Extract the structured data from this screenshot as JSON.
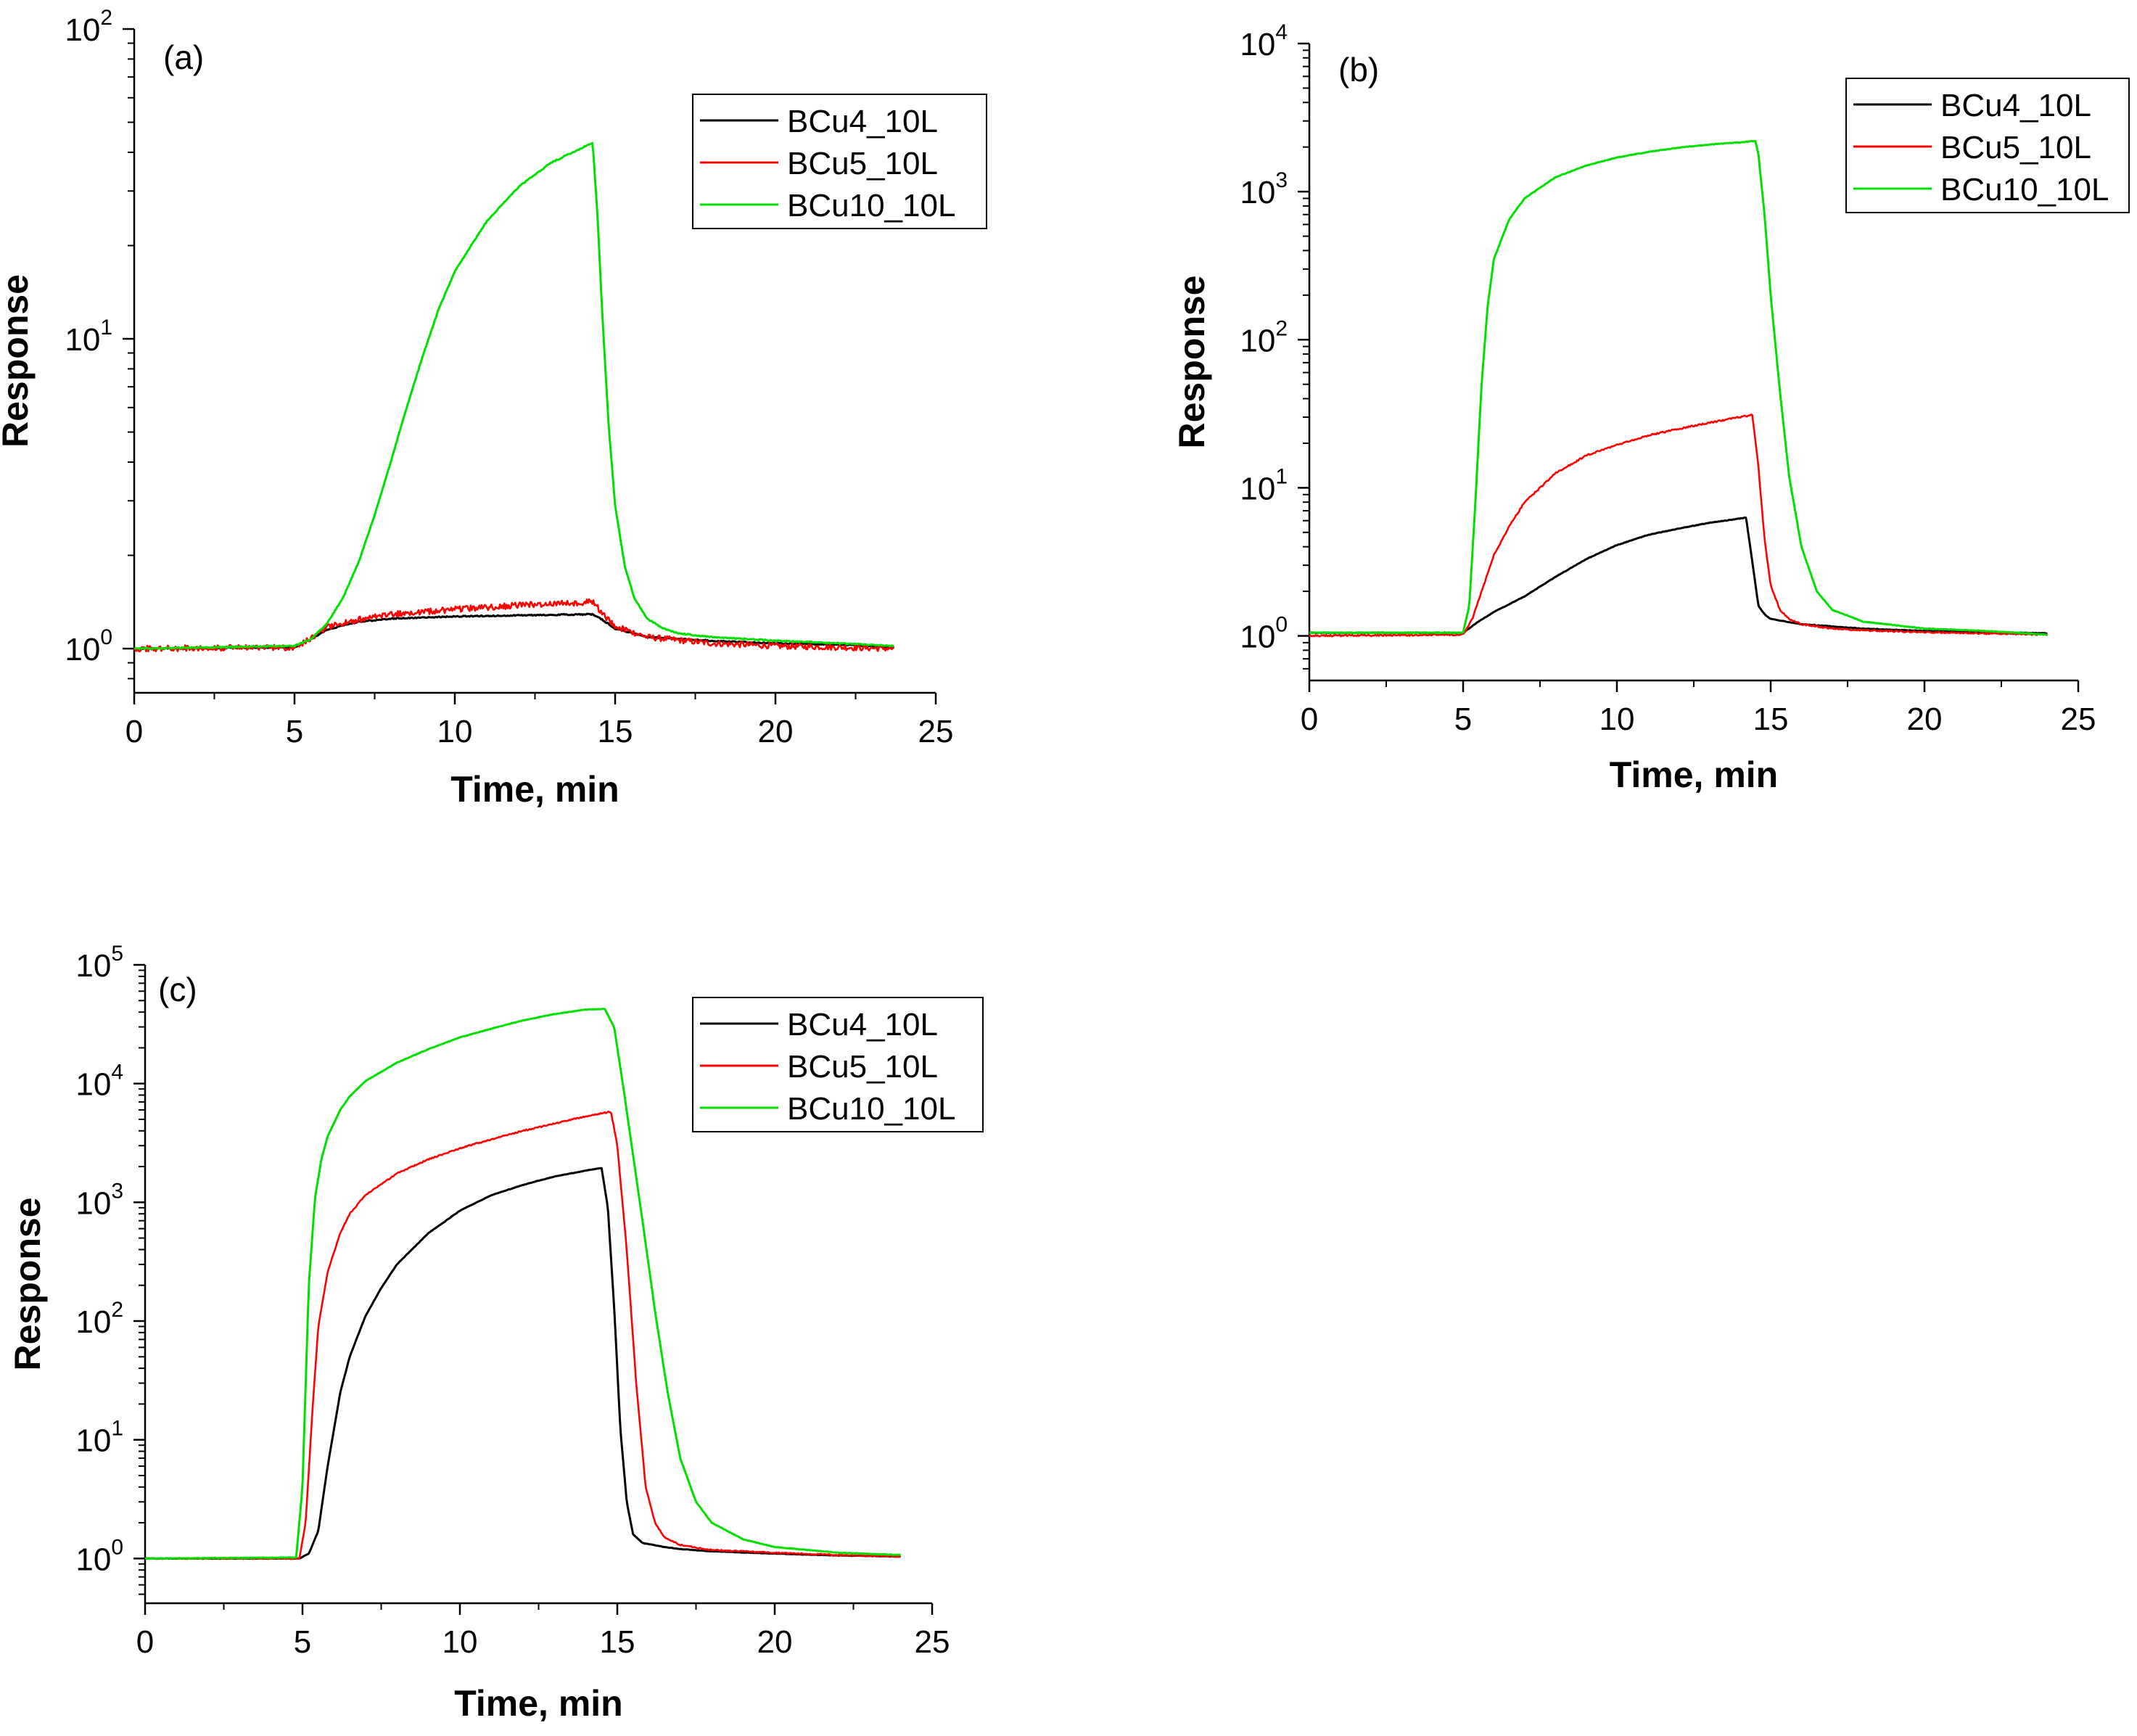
{
  "chart_data": [
    {
      "panel": "(a)",
      "type": "line",
      "xlabel": "Time, min",
      "ylabel": "Response",
      "xlim": [
        0,
        25
      ],
      "ylim": [
        0.72,
        100
      ],
      "yscale": "log",
      "x_ticks": [
        "0",
        "5",
        "10",
        "15",
        "20",
        "25"
      ],
      "y_ticks": [
        {
          "base": "10",
          "exp": "0",
          "value": 1
        },
        {
          "base": "10",
          "exp": "1",
          "value": 10
        },
        {
          "base": "10",
          "exp": "2",
          "value": 100
        }
      ],
      "legend": "top-right",
      "series": [
        {
          "name": "BCu4_10L",
          "color": "#000000",
          "noise": 0.004,
          "x": [
            0,
            5,
            5.5,
            6,
            7,
            8,
            10,
            12,
            14,
            14.3,
            14.6,
            15,
            16,
            18,
            20,
            22,
            23.7
          ],
          "y": [
            1.0,
            1.01,
            1.07,
            1.15,
            1.22,
            1.25,
            1.27,
            1.28,
            1.29,
            1.29,
            1.24,
            1.16,
            1.09,
            1.06,
            1.04,
            1.03,
            1.01
          ]
        },
        {
          "name": "BCu5_10L",
          "color": "#ff0000",
          "noise": 0.022,
          "x": [
            0,
            5,
            5.5,
            6,
            7,
            8,
            10,
            12,
            14,
            14.3,
            14.6,
            15,
            16,
            18,
            20,
            22,
            23.7
          ],
          "y": [
            1.0,
            1.01,
            1.08,
            1.17,
            1.24,
            1.29,
            1.34,
            1.38,
            1.41,
            1.42,
            1.3,
            1.18,
            1.09,
            1.04,
            1.02,
            1.01,
            1.0
          ]
        },
        {
          "name": "BCu10_10L",
          "color": "#00e000",
          "noise": 0.004,
          "x": [
            0,
            5,
            5.5,
            6,
            6.5,
            7,
            7.5,
            8,
            8.5,
            9,
            9.5,
            10,
            11,
            12,
            13,
            14,
            14.3,
            14.45,
            14.6,
            14.8,
            15,
            15.3,
            15.6,
            16,
            16.5,
            17,
            18,
            20,
            22,
            23.7
          ],
          "y": [
            1.0,
            1.02,
            1.07,
            1.2,
            1.45,
            1.9,
            2.7,
            4.0,
            6.0,
            8.8,
            12.5,
            16.5,
            24,
            31,
            37,
            41.5,
            43,
            25,
            12,
            5.2,
            2.9,
            1.85,
            1.45,
            1.25,
            1.16,
            1.12,
            1.09,
            1.06,
            1.04,
            1.02
          ]
        }
      ]
    },
    {
      "panel": "(b)",
      "type": "line",
      "xlabel": "Time, min",
      "ylabel": "Response",
      "xlim": [
        0,
        25
      ],
      "ylim": [
        0.5,
        10000
      ],
      "yscale": "log",
      "x_ticks": [
        "0",
        "5",
        "10",
        "15",
        "20",
        "25"
      ],
      "y_ticks": [
        {
          "base": "10",
          "exp": "0",
          "value": 1
        },
        {
          "base": "10",
          "exp": "1",
          "value": 10
        },
        {
          "base": "10",
          "exp": "2",
          "value": 100
        },
        {
          "base": "10",
          "exp": "3",
          "value": 1000
        },
        {
          "base": "10",
          "exp": "4",
          "value": 10000
        }
      ],
      "legend": "top-right",
      "series": [
        {
          "name": "BCu4_10L",
          "color": "#000000",
          "noise": 0.004,
          "x": [
            0,
            5,
            5.5,
            6,
            7,
            8,
            9,
            10,
            11,
            12,
            13,
            14,
            14.2,
            14.4,
            14.6,
            14.8,
            15,
            16,
            18,
            20,
            22,
            24
          ],
          "y": [
            1.05,
            1.05,
            1.25,
            1.45,
            1.85,
            2.5,
            3.3,
            4.1,
            4.8,
            5.3,
            5.8,
            6.2,
            6.3,
            3.2,
            1.6,
            1.4,
            1.3,
            1.2,
            1.12,
            1.08,
            1.06,
            1.04
          ]
        },
        {
          "name": "BCu5_10L",
          "color": "#ff0000",
          "noise": 0.012,
          "x": [
            0,
            5,
            5.3,
            5.6,
            6,
            6.5,
            7,
            8,
            9,
            10,
            11,
            12,
            13,
            14,
            14.4,
            14.6,
            14.8,
            15,
            15.3,
            15.6,
            16,
            17,
            18,
            20,
            22,
            24
          ],
          "y": [
            1.0,
            1.02,
            1.3,
            2.0,
            3.5,
            5.5,
            8.0,
            12.5,
            16.5,
            19.5,
            22.5,
            25,
            27.5,
            30,
            31,
            14,
            4.5,
            2.2,
            1.5,
            1.3,
            1.2,
            1.12,
            1.09,
            1.06,
            1.04,
            1.02
          ]
        },
        {
          "name": "BCu10_10L",
          "color": "#00e000",
          "noise": 0.004,
          "x": [
            0,
            5,
            5.2,
            5.4,
            5.6,
            5.8,
            6,
            6.5,
            7,
            8,
            9,
            10,
            11,
            12,
            13,
            14,
            14.5,
            14.6,
            14.8,
            15,
            15.3,
            15.6,
            16,
            16.5,
            17,
            18,
            20,
            22,
            24
          ],
          "y": [
            1.05,
            1.05,
            1.6,
            8,
            50,
            170,
            350,
            650,
            900,
            1250,
            1500,
            1700,
            1850,
            1980,
            2080,
            2150,
            2200,
            1800,
            700,
            200,
            45,
            12,
            4,
            2,
            1.5,
            1.25,
            1.12,
            1.08,
            1.02
          ]
        }
      ]
    },
    {
      "panel": "(c)",
      "type": "line",
      "xlabel": "Time, min",
      "ylabel": "Response",
      "xlim": [
        0,
        25
      ],
      "ylim": [
        0.42,
        100000
      ],
      "yscale": "log",
      "x_ticks": [
        "0",
        "5",
        "10",
        "15",
        "20",
        "25"
      ],
      "y_ticks": [
        {
          "base": "10",
          "exp": "0",
          "value": 1
        },
        {
          "base": "10",
          "exp": "1",
          "value": 10
        },
        {
          "base": "10",
          "exp": "2",
          "value": 100
        },
        {
          "base": "10",
          "exp": "3",
          "value": 1000
        },
        {
          "base": "10",
          "exp": "4",
          "value": 10000
        },
        {
          "base": "10",
          "exp": "5",
          "value": 100000
        }
      ],
      "legend": "top-right",
      "series": [
        {
          "name": "BCu4_10L",
          "color": "#000000",
          "noise": 0.004,
          "x": [
            0,
            4.9,
            5.2,
            5.5,
            5.8,
            6.2,
            6.5,
            7,
            7.5,
            8,
            9,
            10,
            11,
            12,
            13,
            14,
            14.5,
            14.7,
            14.9,
            15.1,
            15.3,
            15.5,
            15.8,
            16.5,
            17,
            18,
            20,
            22,
            24
          ],
          "y": [
            1.0,
            1.0,
            1.1,
            1.7,
            6,
            25,
            50,
            110,
            190,
            300,
            550,
            850,
            1150,
            1400,
            1650,
            1850,
            1950,
            900,
            130,
            12,
            3,
            1.6,
            1.35,
            1.25,
            1.2,
            1.15,
            1.1,
            1.06,
            1.04
          ]
        },
        {
          "name": "BCu5_10L",
          "color": "#ff0000",
          "noise": 0.012,
          "x": [
            0,
            4.9,
            5.1,
            5.3,
            5.5,
            5.8,
            6.2,
            6.5,
            7,
            8,
            9,
            10,
            11,
            12,
            13,
            14,
            14.8,
            15.0,
            15.3,
            15.6,
            15.9,
            16.2,
            16.5,
            17,
            18,
            20,
            22,
            24
          ],
          "y": [
            1.0,
            1.0,
            2.0,
            15,
            90,
            260,
            550,
            800,
            1150,
            1750,
            2300,
            2850,
            3400,
            4000,
            4600,
            5300,
            5800,
            3000,
            400,
            30,
            4,
            2,
            1.5,
            1.3,
            1.18,
            1.12,
            1.07,
            1.04
          ]
        },
        {
          "name": "BCu10_10L",
          "color": "#00e000",
          "noise": 0.004,
          "x": [
            0,
            4.8,
            5.0,
            5.2,
            5.4,
            5.6,
            5.8,
            6.2,
            6.5,
            7,
            8,
            9,
            10,
            11,
            12,
            13,
            14,
            14.6,
            14.9,
            15.2,
            15.5,
            15.8,
            16.2,
            16.6,
            17,
            17.5,
            18,
            19,
            20,
            22,
            24
          ],
          "y": [
            1.0,
            1.02,
            4,
            200,
            1100,
            2300,
            3600,
            6000,
            7800,
            10500,
            15000,
            19500,
            24500,
            29000,
            34000,
            38500,
            42000,
            42500,
            30000,
            9000,
            2500,
            700,
            120,
            25,
            7,
            3,
            2,
            1.45,
            1.25,
            1.12,
            1.07
          ]
        }
      ]
    }
  ]
}
